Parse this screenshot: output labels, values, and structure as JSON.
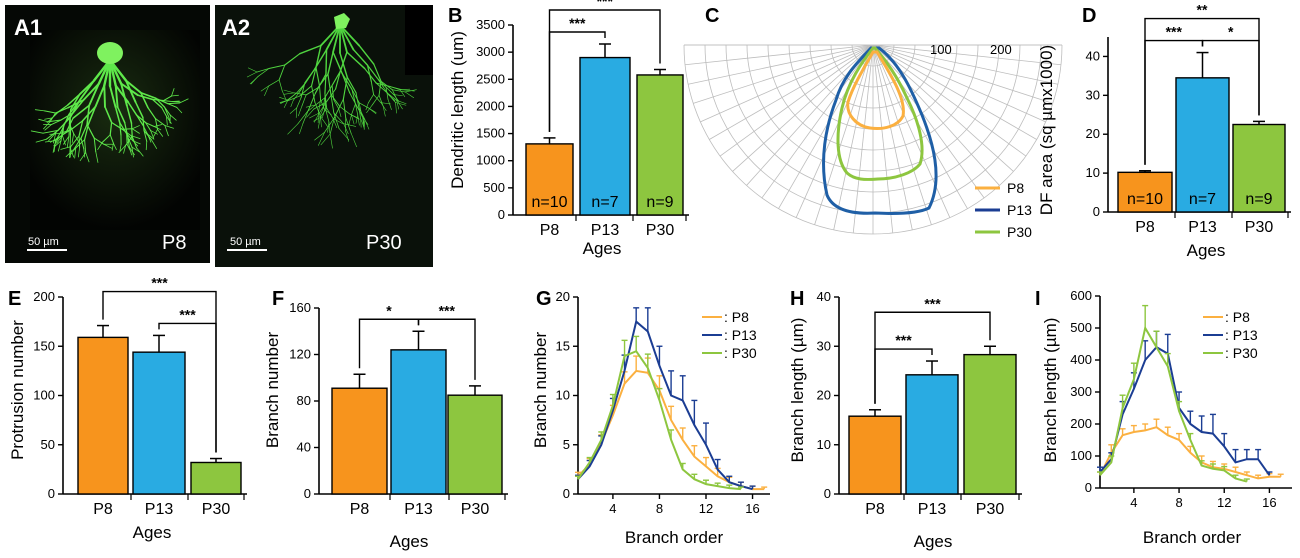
{
  "colors": {
    "p8": "#F7941D",
    "p13": "#29ABE2",
    "p30": "#8DC63F",
    "p8_line": "#FBB040",
    "p13_line": "#1B3D93",
    "p30_line": "#8DC63F"
  },
  "panels": {
    "A1": {
      "label": "A1",
      "age": "P8",
      "scale": "50 µm"
    },
    "A2": {
      "label": "A2",
      "age": "P30",
      "scale": "50 µm"
    },
    "C": {
      "label": "C",
      "ring_labels": [
        "100",
        "200"
      ],
      "legend": [
        "P8",
        "P13",
        "P30"
      ]
    }
  },
  "chart_data": [
    {
      "id": "B",
      "type": "bar",
      "label": "B",
      "categories": [
        "P8",
        "P13",
        "P30"
      ],
      "values": [
        1310,
        2900,
        2580
      ],
      "errors": [
        110,
        250,
        100
      ],
      "n_labels": [
        "n=10",
        "n=7",
        "n=9"
      ],
      "ylabel": "Dendritic length (um)",
      "xlabel": "Ages",
      "ylim": [
        0,
        3500
      ],
      "yticks": [
        "0",
        "500",
        "1000",
        "1500",
        "2000",
        "2500",
        "3000",
        "3500"
      ],
      "sig": [
        {
          "from": 0,
          "to": 1,
          "text": "***"
        },
        {
          "from": 0,
          "to": 2,
          "text": "***"
        }
      ]
    },
    {
      "id": "D",
      "type": "bar",
      "label": "D",
      "categories": [
        "P8",
        "P13",
        "P30"
      ],
      "values": [
        10.2,
        34.5,
        22.5
      ],
      "errors": [
        0.4,
        6.5,
        0.8
      ],
      "n_labels": [
        "n=10",
        "n=7",
        "n=9"
      ],
      "ylabel": "DF area (sq µmx1000)",
      "xlabel": "Ages",
      "ylim": [
        0,
        45
      ],
      "yticks": [
        "0",
        "10",
        "20",
        "30",
        "40"
      ],
      "sig": [
        {
          "from": 0,
          "to": 1,
          "text": "***"
        },
        {
          "from": 1,
          "to": 2,
          "text": "*"
        },
        {
          "from": 0,
          "to": 2,
          "text": "**"
        }
      ]
    },
    {
      "id": "E",
      "type": "bar",
      "label": "E",
      "categories": [
        "P8",
        "P13",
        "P30"
      ],
      "values": [
        159,
        144,
        32
      ],
      "errors": [
        12,
        17,
        4
      ],
      "ylabel": "Protrusion number",
      "xlabel": "Ages",
      "ylim": [
        0,
        200
      ],
      "yticks": [
        "0",
        "50",
        "100",
        "150",
        "200"
      ],
      "sig": [
        {
          "from": 1,
          "to": 2,
          "text": "***"
        },
        {
          "from": 0,
          "to": 2,
          "text": "***"
        }
      ]
    },
    {
      "id": "F",
      "type": "bar",
      "label": "F",
      "categories": [
        "P8",
        "P13",
        "P30"
      ],
      "values": [
        91,
        124,
        85
      ],
      "errors": [
        12,
        16,
        8
      ],
      "ylabel": "Branch number",
      "xlabel": "Ages",
      "ylim": [
        0,
        160
      ],
      "yticks": [
        "0",
        "40",
        "80",
        "120",
        "160"
      ],
      "sig": [
        {
          "from": 0,
          "to": 1,
          "text": "*"
        },
        {
          "from": 1,
          "to": 2,
          "text": "***"
        }
      ]
    },
    {
      "id": "H",
      "type": "bar",
      "label": "H",
      "categories": [
        "P8",
        "P13",
        "P30"
      ],
      "values": [
        15.8,
        24.2,
        28.3
      ],
      "errors": [
        1.3,
        2.8,
        1.7
      ],
      "ylabel": "Branch length (µm)",
      "xlabel": "Ages",
      "ylim": [
        0,
        40
      ],
      "yticks": [
        "0",
        "10",
        "20",
        "30",
        "40"
      ],
      "sig": [
        {
          "from": 0,
          "to": 1,
          "text": "***"
        },
        {
          "from": 0,
          "to": 2,
          "text": "***"
        }
      ]
    },
    {
      "id": "G",
      "type": "line",
      "label": "G",
      "xlabel": "Branch order",
      "ylabel": "Branch number",
      "xlim": [
        1,
        17.5
      ],
      "ylim": [
        0,
        20
      ],
      "xticks": [
        "4",
        "8",
        "12",
        "16"
      ],
      "yticks": [
        "0",
        "5",
        "10",
        "15",
        "20"
      ],
      "legend": [
        ": P8",
        ": P13",
        ": P30"
      ],
      "series": [
        {
          "name": "P8",
          "x": [
            1,
            2,
            3,
            4,
            5,
            6,
            7,
            8,
            9,
            10,
            11,
            12,
            13,
            14,
            15,
            16,
            17
          ],
          "y": [
            1.8,
            3.0,
            5.2,
            8.0,
            11.2,
            12.5,
            12.3,
            10.5,
            7.5,
            5.5,
            3.8,
            2.8,
            1.8,
            1.2,
            0.8,
            0.5,
            0.5
          ],
          "err": [
            0.4,
            0.6,
            0.8,
            1.0,
            1.2,
            1.5,
            1.5,
            1.5,
            1.4,
            1.2,
            1.1,
            0.9,
            0.8,
            0.5,
            0.4,
            0.3,
            0.2
          ]
        },
        {
          "name": "P13",
          "x": [
            1,
            2,
            3,
            4,
            5,
            6,
            7,
            8,
            9,
            10,
            11,
            12,
            13,
            14,
            15,
            16
          ],
          "y": [
            1.5,
            2.8,
            5.0,
            8.5,
            12.5,
            17.5,
            16.5,
            13.0,
            10.0,
            9.5,
            7.0,
            5.0,
            2.5,
            1.2,
            0.8,
            0.5
          ],
          "err": [
            0.4,
            0.6,
            0.9,
            1.2,
            1.6,
            1.4,
            2.4,
            2.0,
            2.5,
            2.5,
            2.5,
            2.2,
            1.0,
            0.6,
            0.4,
            0.3
          ]
        },
        {
          "name": "P30",
          "x": [
            1,
            2,
            3,
            4,
            5,
            6,
            7,
            8,
            9,
            10,
            11,
            12,
            13,
            14,
            15
          ],
          "y": [
            1.5,
            3.2,
            5.5,
            9.0,
            14.0,
            14.5,
            12.8,
            9.5,
            5.5,
            2.5,
            1.5,
            1.0,
            0.8,
            0.6,
            0.5
          ],
          "err": [
            0.3,
            0.5,
            0.8,
            1.1,
            1.6,
            1.5,
            1.4,
            1.2,
            1.0,
            0.6,
            0.5,
            0.4,
            0.3,
            0.3,
            0.2
          ]
        }
      ]
    },
    {
      "id": "I",
      "type": "line",
      "label": "I",
      "xlabel": "Branch order",
      "ylabel": "Branch length (µm)",
      "xlim": [
        1,
        18
      ],
      "ylim": [
        0,
        600
      ],
      "xticks": [
        "4",
        "8",
        "12",
        "16"
      ],
      "yticks": [
        "0",
        "100",
        "200",
        "300",
        "400",
        "500",
        "600"
      ],
      "legend": [
        ": P8",
        ": P13",
        ": P30"
      ],
      "series": [
        {
          "name": "P8",
          "x": [
            1,
            2,
            3,
            4,
            5,
            6,
            7,
            8,
            9,
            10,
            11,
            12,
            13,
            14,
            15,
            16,
            17
          ],
          "y": [
            40,
            110,
            165,
            175,
            180,
            190,
            165,
            150,
            110,
            80,
            65,
            60,
            50,
            40,
            30,
            35,
            35
          ],
          "err": [
            10,
            25,
            20,
            20,
            20,
            25,
            25,
            20,
            20,
            20,
            18,
            15,
            15,
            10,
            10,
            10,
            8
          ]
        },
        {
          "name": "P13",
          "x": [
            1,
            2,
            3,
            4,
            5,
            6,
            7,
            8,
            9,
            10,
            11,
            12,
            13,
            14,
            15,
            16
          ],
          "y": [
            50,
            90,
            230,
            310,
            400,
            440,
            420,
            250,
            200,
            175,
            170,
            130,
            80,
            90,
            90,
            40
          ],
          "err": [
            15,
            20,
            40,
            50,
            60,
            50,
            60,
            50,
            40,
            50,
            60,
            40,
            40,
            30,
            30,
            10
          ]
        },
        {
          "name": "P30",
          "x": [
            1,
            2,
            3,
            4,
            5,
            6,
            7,
            8,
            9,
            10,
            11,
            12,
            13,
            14
          ],
          "y": [
            40,
            80,
            250,
            340,
            500,
            440,
            380,
            240,
            150,
            70,
            60,
            55,
            30,
            20
          ],
          "err": [
            10,
            20,
            40,
            50,
            70,
            50,
            40,
            30,
            20,
            15,
            15,
            12,
            10,
            8
          ]
        }
      ]
    }
  ]
}
